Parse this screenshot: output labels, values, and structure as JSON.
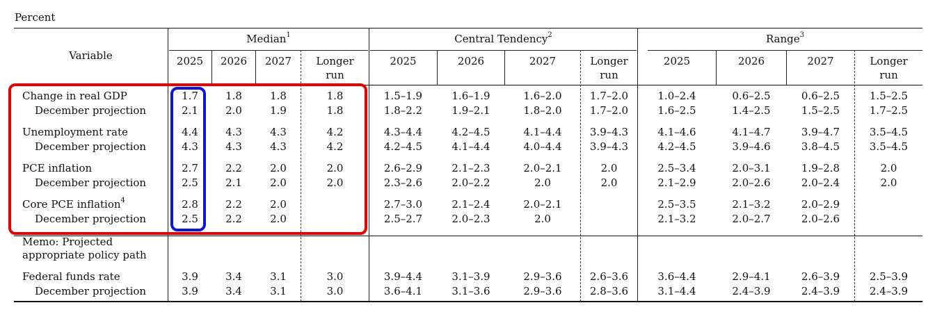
{
  "unit_label": "Percent",
  "headers": {
    "variable": "Variable",
    "median": "Median",
    "median_sup": "1",
    "central": "Central Tendency",
    "central_sup": "2",
    "range": "Range",
    "range_sup": "3",
    "y1": "2025",
    "y2": "2026",
    "y3": "2027",
    "lr1": "Longer",
    "lr2": "run"
  },
  "rows": [
    {
      "label": "Change in real GDP",
      "sup": "",
      "indent": false,
      "median": [
        "1.7",
        "1.8",
        "1.8",
        "1.8"
      ],
      "central": [
        "1.5–1.9",
        "1.6–1.9",
        "1.6–2.0",
        "1.7–2.0"
      ],
      "range": [
        "1.0–2.4",
        "0.6–2.5",
        "0.6–2.5",
        "1.5–2.5"
      ]
    },
    {
      "label": "December projection",
      "sup": "",
      "indent": true,
      "median": [
        "2.1",
        "2.0",
        "1.9",
        "1.8"
      ],
      "central": [
        "1.8–2.2",
        "1.9–2.1",
        "1.8–2.0",
        "1.7–2.0"
      ],
      "range": [
        "1.6–2.5",
        "1.4–2.5",
        "1.5–2.5",
        "1.7–2.5"
      ]
    },
    {
      "label": "Unemployment rate",
      "sup": "",
      "indent": false,
      "median": [
        "4.4",
        "4.3",
        "4.3",
        "4.2"
      ],
      "central": [
        "4.3–4.4",
        "4.2–4.5",
        "4.1–4.4",
        "3.9–4.3"
      ],
      "range": [
        "4.1–4.6",
        "4.1–4.7",
        "3.9–4.7",
        "3.5–4.5"
      ]
    },
    {
      "label": "December projection",
      "sup": "",
      "indent": true,
      "median": [
        "4.3",
        "4.3",
        "4.3",
        "4.2"
      ],
      "central": [
        "4.2–4.5",
        "4.1–4.4",
        "4.0–4.4",
        "3.9–4.3"
      ],
      "range": [
        "4.2–4.5",
        "3.9–4.6",
        "3.8–4.5",
        "3.5–4.5"
      ]
    },
    {
      "label": "PCE inflation",
      "sup": "",
      "indent": false,
      "median": [
        "2.7",
        "2.2",
        "2.0",
        "2.0"
      ],
      "central": [
        "2.6–2.9",
        "2.1–2.3",
        "2.0–2.1",
        "2.0"
      ],
      "range": [
        "2.5–3.4",
        "2.0–3.1",
        "1.9–2.8",
        "2.0"
      ]
    },
    {
      "label": "December projection",
      "sup": "",
      "indent": true,
      "median": [
        "2.5",
        "2.1",
        "2.0",
        "2.0"
      ],
      "central": [
        "2.3–2.6",
        "2.0–2.2",
        "2.0",
        "2.0"
      ],
      "range": [
        "2.1–2.9",
        "2.0–2.6",
        "2.0–2.4",
        "2.0"
      ]
    },
    {
      "label": "Core PCE inflation",
      "sup": "4",
      "indent": false,
      "median": [
        "2.8",
        "2.2",
        "2.0",
        ""
      ],
      "central": [
        "2.7–3.0",
        "2.1–2.4",
        "2.0–2.1",
        ""
      ],
      "range": [
        "2.5–3.5",
        "2.1–3.2",
        "2.0–2.9",
        ""
      ]
    },
    {
      "label": "December projection",
      "sup": "",
      "indent": true,
      "median": [
        "2.5",
        "2.2",
        "2.0",
        ""
      ],
      "central": [
        "2.5–2.7",
        "2.0–2.3",
        "2.0",
        ""
      ],
      "range": [
        "2.1–3.2",
        "2.0–2.7",
        "2.0–2.6",
        ""
      ]
    },
    {
      "label": "Federal funds rate",
      "sup": "",
      "indent": false,
      "median": [
        "3.9",
        "3.4",
        "3.1",
        "3.0"
      ],
      "central": [
        "3.9–4.4",
        "3.1–3.9",
        "2.9–3.6",
        "2.6–3.6"
      ],
      "range": [
        "3.6–4.4",
        "2.9–4.1",
        "2.6–3.9",
        "2.5–3.9"
      ]
    },
    {
      "label": "December projection",
      "sup": "",
      "indent": true,
      "median": [
        "3.9",
        "3.4",
        "3.1",
        "3.0"
      ],
      "central": [
        "3.6–4.1",
        "3.1–3.6",
        "2.9–3.6",
        "2.8–3.6"
      ],
      "range": [
        "3.1–4.4",
        "2.4–3.9",
        "2.4–3.9",
        "2.4–3.9"
      ]
    }
  ],
  "memo": {
    "line1": "Memo: Projected",
    "line2": "appropriate policy path"
  },
  "highlights": {
    "red": "#e60000",
    "blue": "#0a14e6"
  }
}
